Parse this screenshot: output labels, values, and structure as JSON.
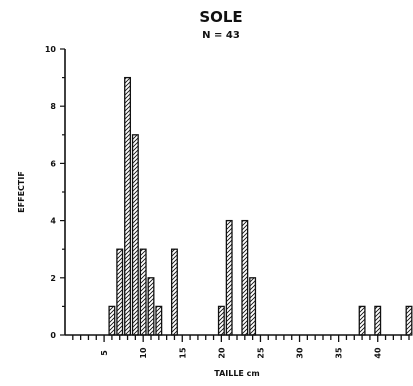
{
  "chart_data": {
    "type": "bar",
    "title": "SOLE",
    "subtitle": "N = 43",
    "xlabel": "TAILLE cm",
    "ylabel": "EFFECTIF",
    "xlim": [
      0,
      44
    ],
    "ylim": [
      0,
      10
    ],
    "xticks": [
      "5",
      "10",
      "15",
      "20",
      "25",
      "30",
      "35",
      "40"
    ],
    "yticks": [
      "0",
      "2",
      "4",
      "6",
      "8",
      "10"
    ],
    "x": [
      6,
      7,
      8,
      9,
      10,
      11,
      12,
      14,
      20,
      21,
      23,
      24,
      38,
      40,
      44
    ],
    "values": [
      1,
      3,
      9,
      7,
      3,
      2,
      1,
      3,
      1,
      4,
      4,
      2,
      1,
      1,
      1
    ],
    "grid": false,
    "legend": "none"
  },
  "colors": {
    "ink": "#111111",
    "background": "#ffffff"
  }
}
